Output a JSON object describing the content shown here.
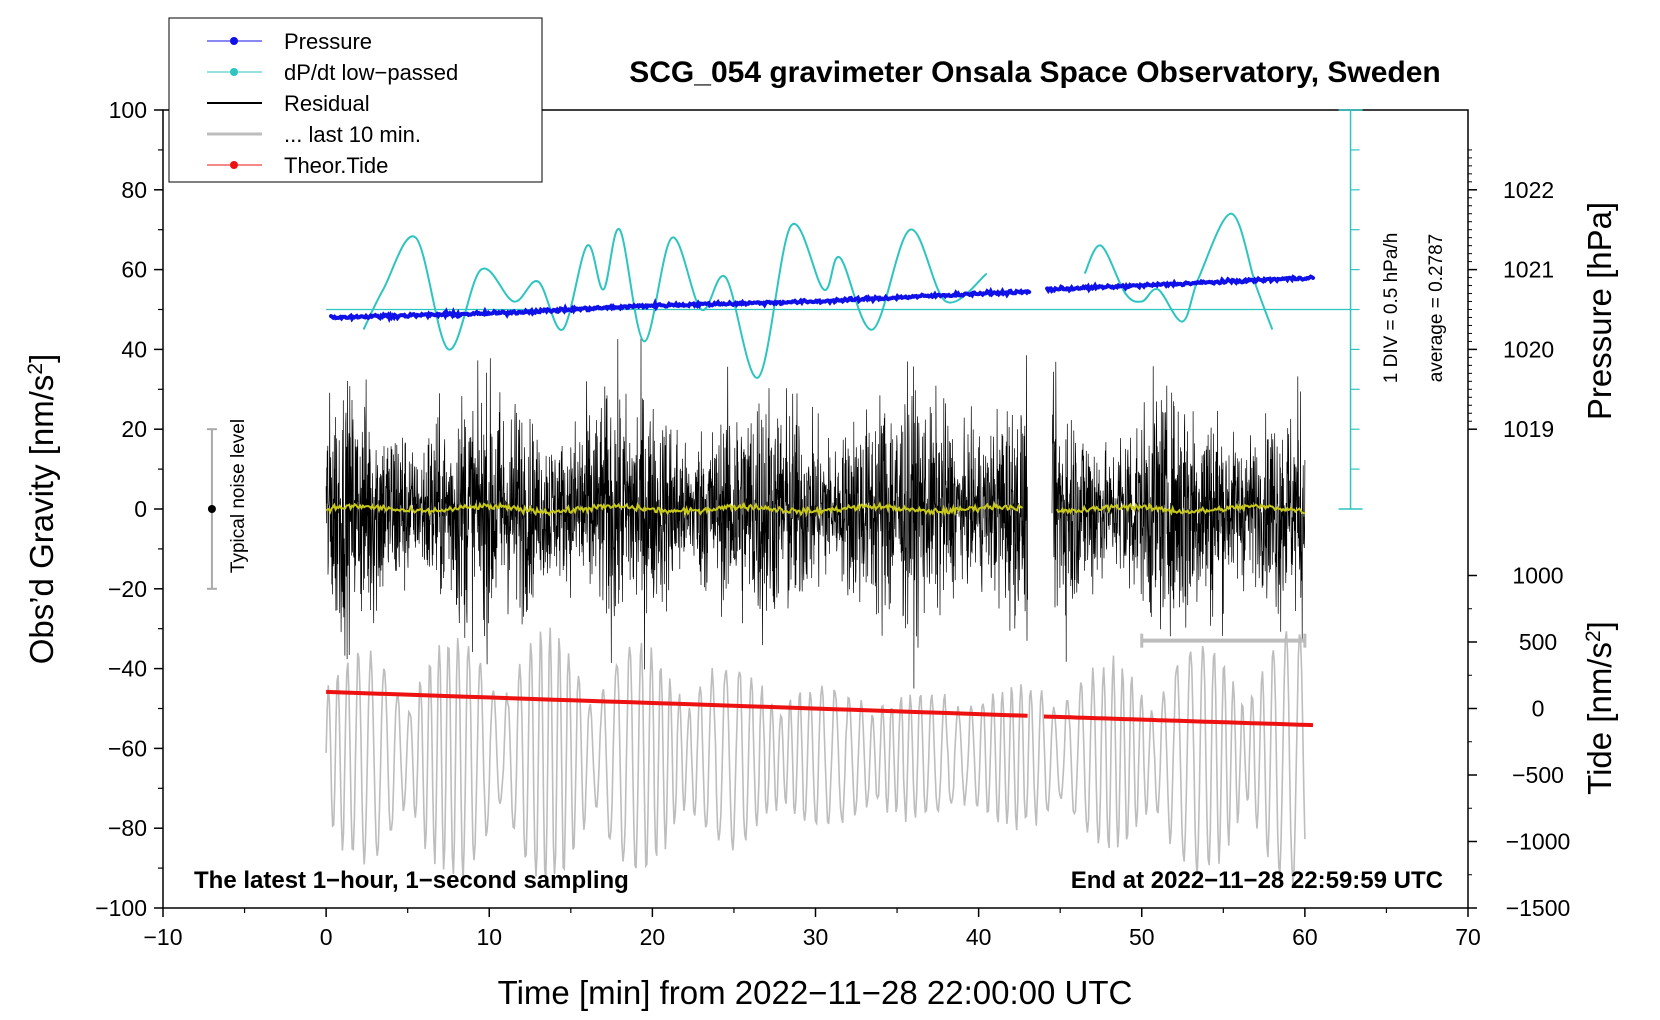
{
  "chart_data": {
    "type": "line",
    "title": "SCG_054 gravimeter Onsala Space Observatory, Sweden",
    "xlabel": "Time [min] from 2022−11−28 22:00:00 UTC",
    "ylabel_left": "Obs’d Gravity [nm/s",
    "ylabel_left_sup": "2",
    "ylabel_left_end": "]",
    "ylabel_right_top": "Pressure [hPa]",
    "ylabel_right_bottom": "Tide [nm/s",
    "ylabel_right_bottom_sup": "2",
    "ylabel_right_bottom_end": "]",
    "xlim": [
      -10,
      70
    ],
    "ylim_left": [
      -100,
      100
    ],
    "x_ticks": [
      "−10",
      "0",
      "10",
      "20",
      "30",
      "40",
      "50",
      "60",
      "70"
    ],
    "y_ticks_left": [
      "−100",
      "−80",
      "−60",
      "−40",
      "−20",
      "0",
      "20",
      "40",
      "60",
      "80",
      "100"
    ],
    "pressure_ticks": [
      "1019",
      "1020",
      "1021",
      "1022"
    ],
    "tide_ticks": [
      "−1500",
      "−1000",
      "−500",
      "0",
      "500",
      "1000"
    ],
    "legend": [
      "Pressure",
      "dP/dt low−passed",
      "Residual",
      "... last 10 min.",
      "Theor.Tide"
    ],
    "series": [
      {
        "name": "Pressure",
        "unit": "hPa",
        "x": [
          0,
          10,
          20,
          30,
          40,
          43,
          44,
          50,
          60.5
        ],
        "values": [
          1020.4,
          1020.45,
          1020.55,
          1020.6,
          1020.7,
          1020.72,
          1020.75,
          1020.8,
          1020.9
        ],
        "gap": [
          43,
          44
        ]
      },
      {
        "name": "dP/dt low−passed",
        "unit": "nm/s2 (scaled)",
        "x": [
          2.3,
          3.5,
          5.5,
          7.5,
          9.5,
          11.5,
          13,
          14.5,
          16,
          17,
          18,
          19.5,
          21.2,
          23,
          24.5,
          26.5,
          28.5,
          30.5,
          31.5,
          33.5,
          35.8,
          38,
          40.5
        ],
        "values": [
          45,
          55,
          68,
          40,
          60,
          52,
          57,
          45,
          66,
          55,
          70,
          42,
          68,
          50,
          58,
          33,
          71,
          55,
          63,
          45,
          70,
          52,
          59
        ]
      },
      {
        "name": "dP/dt low−passed (after gap)",
        "x": [
          46.5,
          47.5,
          49,
          50,
          51,
          52.5,
          53.5,
          55.5,
          57,
          58
        ],
        "values": [
          59,
          66,
          54,
          52,
          55,
          47,
          58,
          74,
          56,
          45
        ]
      },
      {
        "name": "Residual",
        "unit": "nm/s2",
        "x_range": [
          0,
          60
        ],
        "gap": [
          43,
          44.5
        ],
        "amplitude_envelope": 40,
        "mean": 0
      },
      {
        "name": "Smoothed residual",
        "x_range": [
          0,
          60
        ],
        "values_approx": 1
      },
      {
        "name": "... last 10 min.",
        "unit": "nm/s2 (time-shifted)",
        "x_range": [
          0,
          60
        ],
        "center": -62,
        "amplitude_envelope": 32
      },
      {
        "name": "Theor.Tide",
        "unit": "nm/s2",
        "x": [
          0,
          43,
          44,
          60.5
        ],
        "values": [
          125,
          -55,
          -60,
          -125
        ]
      }
    ],
    "annotations": {
      "noise_label": "Typical noise level",
      "noise_range": [
        -20,
        20
      ],
      "noise_x": -7,
      "scale_label": "1 DIV = 0.5 hPa/h",
      "average_label": "average = 0.2787",
      "scale_bar_x": 62.8,
      "scale_bar_range": [
        0,
        100
      ],
      "average_line_value": 50,
      "ten_min_bar": [
        50,
        60,
        -33
      ],
      "bottom_left_note": "The latest 1−hour, 1−second sampling",
      "bottom_right_note": "End at 2022−11−28 22:59:59 UTC"
    },
    "colors": {
      "pressure": "#1010e8",
      "dpdt": "#2ec4c0",
      "residual": "#000000",
      "smooth": "#c8c818",
      "last10": "#bdbdbd",
      "tide": "#ee1111"
    }
  }
}
